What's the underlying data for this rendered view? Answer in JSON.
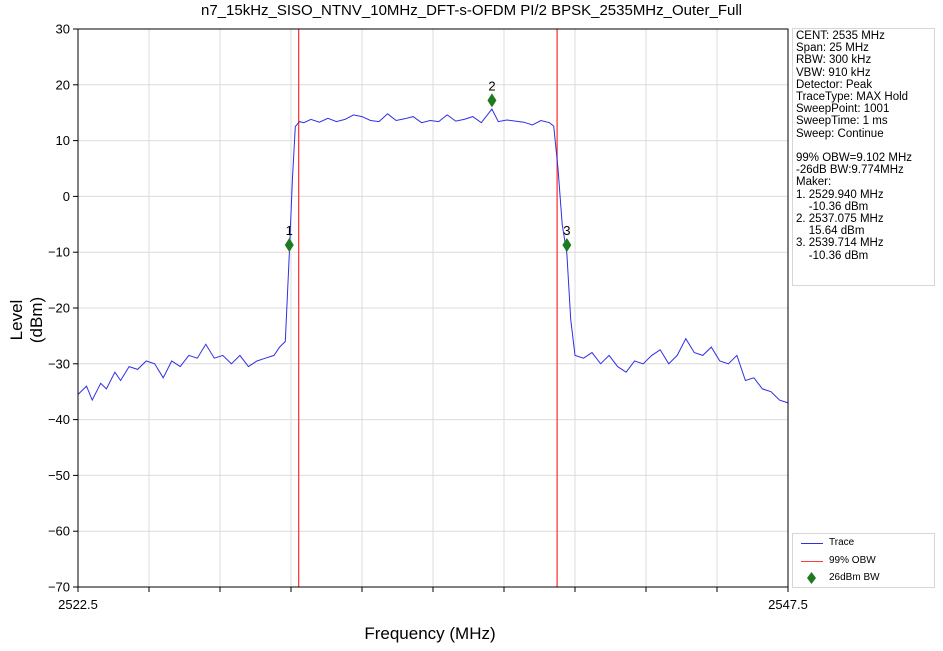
{
  "chart_data": {
    "type": "line",
    "title": "n7_15kHz_SISO_NTNV_10MHz_DFT-s-OFDM PI/2 BPSK_2535MHz_Outer_Full",
    "xlabel": "Frequency (MHz)",
    "ylabel": "Level (dBm)",
    "xlim": [
      2522.5,
      2547.5
    ],
    "ylim": [
      -70,
      30
    ],
    "x_tick_labels": [
      "2522.5",
      "2547.5"
    ],
    "y_ticks": [
      30,
      20,
      10,
      0,
      -10,
      -20,
      -30,
      -40,
      -50,
      -60,
      -70
    ],
    "y_tick_labels": [
      "30",
      "20",
      "10",
      "0",
      "−10",
      "−20",
      "−30",
      "−40",
      "−50",
      "−60",
      "−70"
    ],
    "grid": true,
    "legend_position": "bottom-right",
    "series": [
      {
        "name": "Trace",
        "color": "#2f2fe6",
        "x": [
          2522.5,
          2522.8,
          2523.0,
          2523.3,
          2523.5,
          2523.8,
          2524.0,
          2524.3,
          2524.6,
          2524.9,
          2525.2,
          2525.5,
          2525.8,
          2526.1,
          2526.4,
          2526.7,
          2527.0,
          2527.3,
          2527.6,
          2527.9,
          2528.2,
          2528.5,
          2528.8,
          2529.1,
          2529.4,
          2529.6,
          2529.8,
          2529.94,
          2530.05,
          2530.15,
          2530.3,
          2530.45,
          2530.7,
          2531.0,
          2531.3,
          2531.6,
          2531.9,
          2532.2,
          2532.5,
          2532.8,
          2533.1,
          2533.4,
          2533.7,
          2534.0,
          2534.3,
          2534.6,
          2534.9,
          2535.2,
          2535.5,
          2535.8,
          2536.1,
          2536.4,
          2536.7,
          2537.075,
          2537.3,
          2537.6,
          2537.9,
          2538.2,
          2538.5,
          2538.8,
          2539.1,
          2539.25,
          2539.4,
          2539.55,
          2539.714,
          2539.85,
          2540.0,
          2540.3,
          2540.6,
          2540.9,
          2541.2,
          2541.5,
          2541.8,
          2542.1,
          2542.4,
          2542.7,
          2543.0,
          2543.3,
          2543.6,
          2543.9,
          2544.2,
          2544.5,
          2544.8,
          2545.1,
          2545.4,
          2545.7,
          2546.0,
          2546.3,
          2546.6,
          2546.9,
          2547.2,
          2547.5
        ],
        "y": [
          -35.5,
          -34,
          -36.5,
          -33.5,
          -34.5,
          -31.5,
          -33,
          -30.5,
          -31,
          -29.5,
          -30,
          -32.5,
          -29.5,
          -30.5,
          -28.5,
          -29,
          -26.5,
          -29,
          -28.5,
          -30,
          -28.5,
          -30.5,
          -29.5,
          -29,
          -28.5,
          -27,
          -26,
          -10.36,
          3,
          12.5,
          13.4,
          13.2,
          13.8,
          13.3,
          14,
          13.4,
          13.8,
          14.6,
          14.3,
          13.6,
          13.4,
          14.8,
          13.6,
          13.9,
          14.3,
          13.2,
          13.6,
          13.4,
          14.6,
          13.5,
          13.8,
          14.3,
          13.2,
          15.64,
          13.4,
          13.7,
          13.5,
          13.3,
          12.8,
          13.6,
          13.2,
          12.6,
          5,
          -5,
          -10.36,
          -22,
          -28.5,
          -29,
          -28,
          -30,
          -28.5,
          -30.5,
          -31.5,
          -29.5,
          -30,
          -28.5,
          -27.5,
          -30,
          -28.5,
          -25.5,
          -28,
          -28.5,
          -27,
          -29.5,
          -30,
          -28.5,
          -33,
          -32.5,
          -34.5,
          -35,
          -36.5,
          -37
        ]
      }
    ],
    "obw_lines": {
      "name": "99% OBW",
      "color": "#ff3b3b",
      "x": [
        2530.27,
        2539.37
      ]
    },
    "markers": {
      "name": "26dBm BW",
      "color": "#1e7a1e",
      "points": [
        {
          "label": "1",
          "x": 2529.94,
          "y": -8.7
        },
        {
          "label": "2",
          "x": 2537.075,
          "y": 17.2
        },
        {
          "label": "3",
          "x": 2539.714,
          "y": -8.7
        }
      ]
    }
  },
  "info_lines": [
    "CENT: 2535 MHz",
    "Span: 25 MHz",
    "RBW: 300 kHz",
    "VBW: 910 kHz",
    "Detector: Peak",
    "TraceType: MAX Hold",
    "SweepPoint: 1001",
    "SweepTime: 1 ms",
    "Sweep: Continue",
    "",
    "99% OBW=9.102 MHz",
    "-26dB BW:9.774MHz",
    "Maker:",
    "1. 2529.940 MHz",
    "    -10.36 dBm",
    "2. 2537.075 MHz",
    "    15.64 dBm",
    "3. 2539.714 MHz",
    "    -10.36 dBm"
  ],
  "legend": {
    "trace_label": "Trace",
    "obw_label": "99% OBW",
    "marker_label": "26dBm BW",
    "trace_color": "#2f2fe6",
    "obw_color": "#ff3b3b",
    "marker_color": "#1e7a1e"
  }
}
